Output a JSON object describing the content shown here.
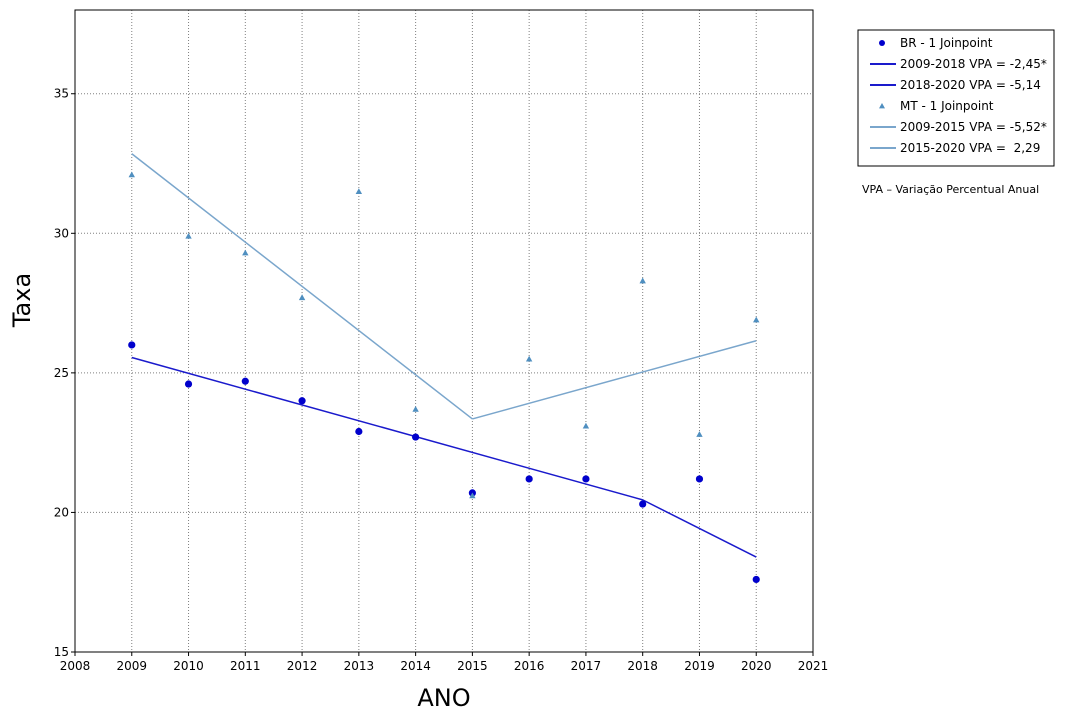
{
  "chart_data": {
    "type": "scatter",
    "title": "",
    "xlabel": "ANO",
    "ylabel": "Taxa",
    "xlim": [
      2008,
      2021
    ],
    "ylim": [
      15,
      38
    ],
    "x_ticks": [
      2008,
      2009,
      2010,
      2011,
      2012,
      2013,
      2014,
      2015,
      2016,
      2017,
      2018,
      2019,
      2020,
      2021
    ],
    "y_ticks": [
      15,
      20,
      25,
      30,
      35
    ],
    "grid": true,
    "legend_position": "right",
    "series": [
      {
        "name": "BR - 1 Joinpoint",
        "marker": "circle",
        "color": "#0000cc",
        "x": [
          2009,
          2010,
          2011,
          2012,
          2013,
          2014,
          2015,
          2016,
          2017,
          2018,
          2019,
          2020
        ],
        "y": [
          26.0,
          24.6,
          24.7,
          24.0,
          22.9,
          22.7,
          20.7,
          21.2,
          21.2,
          20.3,
          21.2,
          17.6
        ]
      },
      {
        "name": "MT - 1 Joinpoint",
        "marker": "triangle",
        "color": "#4f8fc0",
        "x": [
          2009,
          2010,
          2011,
          2012,
          2013,
          2014,
          2015,
          2016,
          2017,
          2018,
          2019,
          2020
        ],
        "y": [
          32.1,
          29.9,
          29.3,
          27.7,
          31.5,
          23.7,
          20.6,
          25.5,
          23.1,
          28.3,
          22.8,
          26.9
        ]
      }
    ],
    "trend_lines": [
      {
        "name": "2009-2018 VPA = -2,45*",
        "color": "#1a1acc",
        "x": [
          2009,
          2018
        ],
        "y": [
          25.55,
          20.45
        ]
      },
      {
        "name": "2018-2020 VPA = -5,14",
        "color": "#1a1acc",
        "x": [
          2018,
          2020
        ],
        "y": [
          20.45,
          18.4
        ]
      },
      {
        "name": "2009-2015 VPA = -5,52*",
        "color": "#7aa6cc",
        "x": [
          2009,
          2015
        ],
        "y": [
          32.85,
          23.35
        ]
      },
      {
        "name": "2015-2020 VPA =  2,29",
        "color": "#7aa6cc",
        "x": [
          2015,
          2020
        ],
        "y": [
          23.35,
          26.15
        ]
      }
    ],
    "legend": [
      {
        "label": "BR - 1 Joinpoint",
        "kind": "circle",
        "color": "#0000cc"
      },
      {
        "label": "2009-2018 VPA = -2,45*",
        "kind": "line",
        "color": "#1a1acc"
      },
      {
        "label": "2018-2020 VPA = -5,14",
        "kind": "line",
        "color": "#1a1acc"
      },
      {
        "label": "MT - 1 Joinpoint",
        "kind": "triangle",
        "color": "#4f8fc0"
      },
      {
        "label": "2009-2015 VPA = -5,52*",
        "kind": "line",
        "color": "#7aa6cc"
      },
      {
        "label": "2015-2020 VPA =  2,29",
        "kind": "line",
        "color": "#7aa6cc"
      }
    ],
    "annotation": "VPA – Variação Percentual Anual"
  }
}
